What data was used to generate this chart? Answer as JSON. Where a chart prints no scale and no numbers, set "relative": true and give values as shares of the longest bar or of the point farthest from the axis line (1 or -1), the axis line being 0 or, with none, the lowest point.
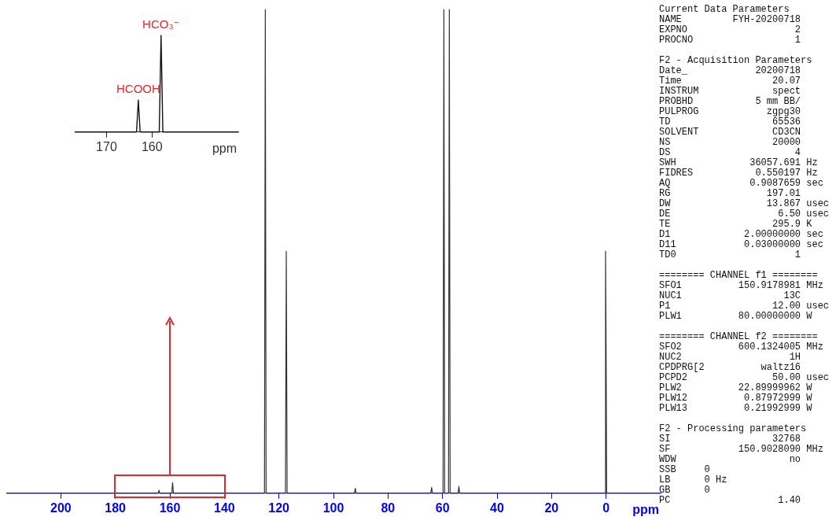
{
  "chart_data": [
    {
      "type": "line",
      "xlabel": "ppm",
      "relative": true,
      "grid": false,
      "legend": false,
      "tick_labels": "x",
      "marker": "none",
      "line_style": "solid",
      "xlim": [
        220,
        -20
      ],
      "xticks": [
        200,
        180,
        160,
        140,
        120,
        100,
        80,
        60,
        40,
        20,
        0
      ],
      "series": [
        {
          "color": "#333333",
          "x": [
            220,
            166,
            164.3,
            164,
            163.7,
            159.3,
            159,
            158.7,
            125.3,
            125,
            124.7,
            117.6,
            117.3,
            117,
            92.3,
            92,
            91.7,
            64.3,
            64,
            63.7,
            59.8,
            59.5,
            59.2,
            57.8,
            57.5,
            57.2,
            54.3,
            54,
            53.7,
            0.4,
            0.2,
            0,
            -0.2,
            -20
          ],
          "values": [
            0,
            0,
            0,
            0.006,
            0,
            0,
            0.022,
            0,
            0,
            1,
            0,
            0,
            0.5,
            0,
            0,
            0.01,
            0,
            0,
            0.012,
            0,
            0,
            1,
            0,
            0,
            1,
            0,
            0,
            0.014,
            0,
            0,
            0.5,
            0.3,
            0,
            0
          ]
        }
      ]
    },
    {
      "type": "line",
      "xlabel": "ppm",
      "relative": true,
      "grid": false,
      "legend": false,
      "tick_labels": "x",
      "marker": "none",
      "line_style": "solid",
      "xlim": [
        177,
        141
      ],
      "xticks": [
        170,
        160
      ],
      "annotations": [
        {
          "text": "HCOOH",
          "x": 163,
          "y": 0.33
        },
        {
          "text": "HCO₃⁻",
          "x": 158,
          "y": 1
        }
      ],
      "series": [
        {
          "color": "#111111",
          "x": [
            177,
            163.4,
            163,
            162.6,
            158.4,
            158,
            157.6,
            141
          ],
          "values": [
            0,
            0,
            0.33,
            0,
            0,
            1,
            0,
            0
          ]
        }
      ]
    },
    {
      "type": "other",
      "annotations": [
        "Current Data Parameters\nNAME         FYH-20200718\nEXPNO                   2\nPROCNO                  1",
        "F2 - Acquisition Parameters\nDate_            20200718\nTime                20.07\nINSTRUM             spect\nPROBHD           5 mm BB/\nPULPROG            zgpg30\nTD                  65536\nSOLVENT             CD3CN\nNS                  20000\nDS                      4\nSWH             36057.691 Hz\nFIDRES           0.550197 Hz\nAQ              0.9087659 sec\nRG                 197.01\nDW                 13.867 usec\nDE                   6.50 usec\nTE                  295.9 K\nD1             2.00000000 sec\nD11            0.03000000 sec\nTD0                     1",
        "======== CHANNEL f1 ========\nSFO1          150.9178981 MHz\nNUC1                  13C\nP1                  12.00 usec\nPLW1          80.00000000 W",
        "======== CHANNEL f2 ========\nSFO2          600.1324005 MHz\nNUC2                   1H\nCPDPRG[2          waltz16\nPCPD2               50.00 usec\nPLW2          22.89999962 W\nPLW12          0.87972999 W\nPLW13          0.21992999 W",
        "F2 - Processing parameters\nSI                  32768\nSF            150.9028090 MHz\nWDW                    no\nSSB     0\nLB      0 Hz\nGB      0\nPC                   1.40"
      ]
    }
  ]
}
